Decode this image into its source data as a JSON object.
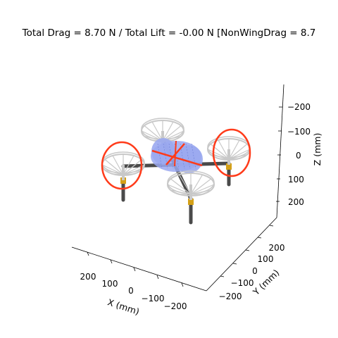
{
  "chart_data": {
    "type": "scatter",
    "subtype": "3d-wireframe",
    "title": "Total Drag = 8.70 N / Total Lift = -0.00 N [NonWingDrag = 8.7",
    "xlabel": "X (mm)",
    "ylabel": "Y (mm)",
    "zlabel": "Z (mm)",
    "x_ticks": [
      "200",
      "100",
      "0",
      "−100",
      "−200"
    ],
    "y_ticks": [
      "−200",
      "−100",
      "0",
      "100",
      "200"
    ],
    "z_ticks": [
      "−200",
      "−100",
      "0",
      "100",
      "200"
    ],
    "z_inverted": true,
    "grid": false,
    "colors": {
      "arm": "#4a4a4a",
      "propeller": "#c8c8c8",
      "motor": "#d4a017",
      "body": "#9aa8f0",
      "highlight": "#ff3b1a"
    }
  }
}
